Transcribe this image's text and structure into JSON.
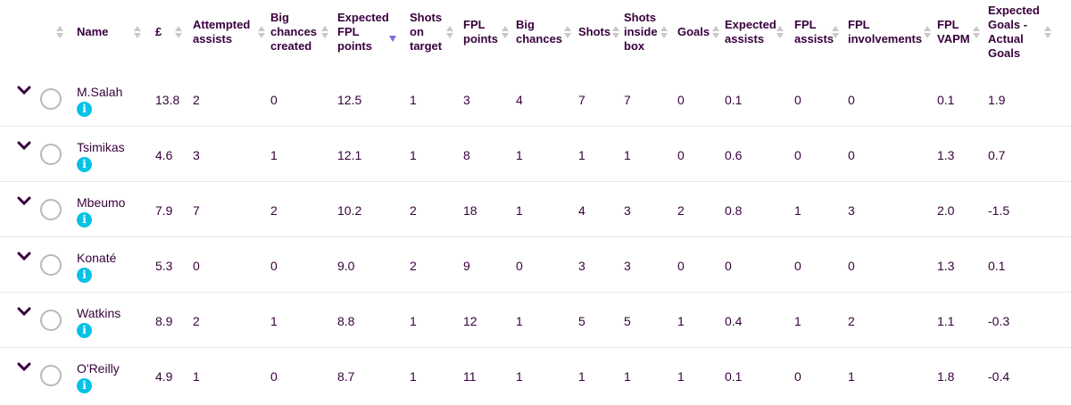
{
  "columns": {
    "name": "Name",
    "price": "£",
    "attempted_assists": [
      "Attempted",
      "assists"
    ],
    "big_chances_created": [
      "Big",
      "chances",
      "created"
    ],
    "expected_fpl_points": [
      "Expected",
      "FPL",
      "points"
    ],
    "shots_on_target": [
      "Shots",
      "on",
      "target"
    ],
    "fpl_points": [
      "FPL",
      "points"
    ],
    "big_chances": [
      "Big",
      "chances"
    ],
    "shots": "Shots",
    "shots_inside_box": [
      "Shots",
      "inside",
      "box"
    ],
    "goals": "Goals",
    "expected_assists": [
      "Expected",
      "assists"
    ],
    "fpl_assists": [
      "FPL",
      "assists"
    ],
    "fpl_involvements": [
      "FPL",
      "involvements"
    ],
    "fpl_vapm": [
      "FPL",
      "VAPM"
    ],
    "xg_minus_goals": [
      "Expected",
      "Goals -",
      "Actual",
      "Goals"
    ]
  },
  "sort": {
    "column": "expected_fpl_points",
    "direction": "descending",
    "active_color": "#7b6fd6",
    "inactive_color": "#c9c9c9"
  },
  "colors": {
    "text": "#37003c",
    "info_icon": "#05c2e6",
    "separator": "#e8e8e8"
  },
  "players": [
    {
      "name": "M.Salah",
      "price": "13.8",
      "attempted_assists": "2",
      "big_chances_created": "0",
      "expected_fpl_points": "12.5",
      "shots_on_target": "1",
      "fpl_points": "3",
      "big_chances": "4",
      "shots": "7",
      "shots_inside_box": "7",
      "goals": "0",
      "expected_assists": "0.1",
      "fpl_assists": "0",
      "fpl_involvements": "0",
      "fpl_vapm": "0.1",
      "xg_minus_goals": "1.9"
    },
    {
      "name": "Tsimikas",
      "price": "4.6",
      "attempted_assists": "3",
      "big_chances_created": "1",
      "expected_fpl_points": "12.1",
      "shots_on_target": "1",
      "fpl_points": "8",
      "big_chances": "1",
      "shots": "1",
      "shots_inside_box": "1",
      "goals": "0",
      "expected_assists": "0.6",
      "fpl_assists": "0",
      "fpl_involvements": "0",
      "fpl_vapm": "1.3",
      "xg_minus_goals": "0.7"
    },
    {
      "name": "Mbeumo",
      "price": "7.9",
      "attempted_assists": "7",
      "big_chances_created": "2",
      "expected_fpl_points": "10.2",
      "shots_on_target": "2",
      "fpl_points": "18",
      "big_chances": "1",
      "shots": "4",
      "shots_inside_box": "3",
      "goals": "2",
      "expected_assists": "0.8",
      "fpl_assists": "1",
      "fpl_involvements": "3",
      "fpl_vapm": "2.0",
      "xg_minus_goals": "-1.5"
    },
    {
      "name": "Konaté",
      "price": "5.3",
      "attempted_assists": "0",
      "big_chances_created": "0",
      "expected_fpl_points": "9.0",
      "shots_on_target": "2",
      "fpl_points": "9",
      "big_chances": "0",
      "shots": "3",
      "shots_inside_box": "3",
      "goals": "0",
      "expected_assists": "0",
      "fpl_assists": "0",
      "fpl_involvements": "0",
      "fpl_vapm": "1.3",
      "xg_minus_goals": "0.1"
    },
    {
      "name": "Watkins",
      "price": "8.9",
      "attempted_assists": "2",
      "big_chances_created": "1",
      "expected_fpl_points": "8.8",
      "shots_on_target": "1",
      "fpl_points": "12",
      "big_chances": "1",
      "shots": "5",
      "shots_inside_box": "5",
      "goals": "1",
      "expected_assists": "0.4",
      "fpl_assists": "1",
      "fpl_involvements": "2",
      "fpl_vapm": "1.1",
      "xg_minus_goals": "-0.3"
    },
    {
      "name": "O'Reilly",
      "price": "4.9",
      "attempted_assists": "1",
      "big_chances_created": "0",
      "expected_fpl_points": "8.7",
      "shots_on_target": "1",
      "fpl_points": "11",
      "big_chances": "1",
      "shots": "1",
      "shots_inside_box": "1",
      "goals": "1",
      "expected_assists": "0.1",
      "fpl_assists": "0",
      "fpl_involvements": "1",
      "fpl_vapm": "1.8",
      "xg_minus_goals": "-0.4"
    }
  ]
}
